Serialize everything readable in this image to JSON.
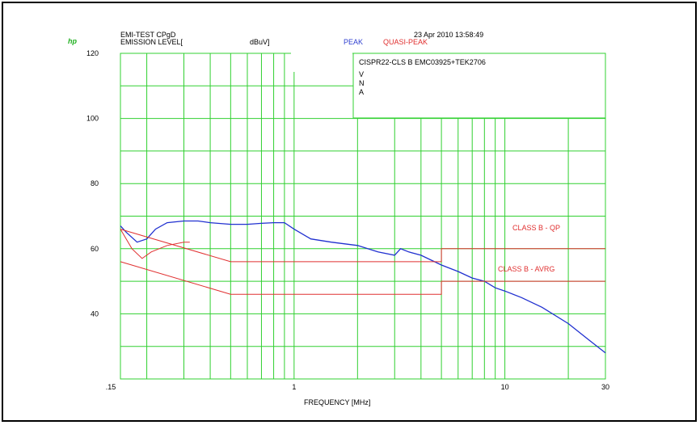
{
  "header": {
    "logo": "hp",
    "test_title": "EMI-TEST CPgD",
    "emission_level": "EMISSION LEVEL[",
    "unit": "dBuV]",
    "peak_label": "PEAK",
    "quasi_peak_label": "QUASI-PEAK",
    "timestamp": "23 Apr 2010  13:58:49"
  },
  "info_box": {
    "line1": "CISPR22-CLS B EMC03925+TEK2706",
    "line2": "V",
    "line3": "N",
    "line4": "A"
  },
  "colors": {
    "grid": "#30d030",
    "peak_trace": "#2030d0",
    "limit": "#e03030"
  },
  "chart_data": {
    "type": "line",
    "xlabel": "FREQUENCY [MHz]",
    "ylabel": "EMISSION LEVEL[ dBuV]",
    "xscale": "log",
    "xlim": [
      0.15,
      30
    ],
    "ylim": [
      20,
      120
    ],
    "x_tick_labels": [
      ".15",
      "1",
      "10",
      "30"
    ],
    "y_tick_labels": [
      "120",
      "100",
      "80",
      "60",
      "40"
    ],
    "grid": true,
    "annotations": [
      "CLASS B - QP",
      "CLASS B - AVRG"
    ],
    "series": [
      {
        "name": "PEAK",
        "color": "#2030d0",
        "x": [
          0.15,
          0.16,
          0.18,
          0.2,
          0.22,
          0.25,
          0.3,
          0.35,
          0.4,
          0.5,
          0.6,
          0.7,
          0.8,
          0.9,
          1.0,
          1.2,
          1.5,
          2.0,
          2.5,
          3.0,
          3.2,
          3.5,
          4.0,
          5.0,
          6.0,
          7.0,
          8.0,
          9.0,
          10.0,
          12.0,
          15.0,
          20.0,
          25.0,
          30.0
        ],
        "y": [
          67,
          65,
          62,
          63,
          66,
          68,
          68.5,
          68.5,
          68,
          67.5,
          67.5,
          67.8,
          68,
          68,
          66,
          63,
          62,
          61,
          59,
          58,
          60,
          59,
          58,
          55,
          53,
          51,
          50,
          48,
          47,
          45,
          42,
          37,
          32,
          28
        ]
      },
      {
        "name": "QUASI-PEAK",
        "color": "#e03030",
        "x": [
          0.15,
          0.17,
          0.19,
          0.21,
          0.25,
          0.3,
          0.32
        ],
        "y": [
          66,
          60,
          57,
          59,
          61,
          62,
          62
        ]
      },
      {
        "name": "CLASS B - QP",
        "color": "#e03030",
        "x": [
          0.15,
          0.5,
          0.5,
          5.0,
          5.0,
          30.0
        ],
        "y": [
          66,
          56,
          56,
          56,
          60,
          60
        ]
      },
      {
        "name": "CLASS B - AVRG",
        "color": "#e03030",
        "x": [
          0.15,
          0.5,
          0.5,
          5.0,
          5.0,
          30.0
        ],
        "y": [
          56,
          46,
          46,
          46,
          50,
          50
        ]
      }
    ]
  }
}
